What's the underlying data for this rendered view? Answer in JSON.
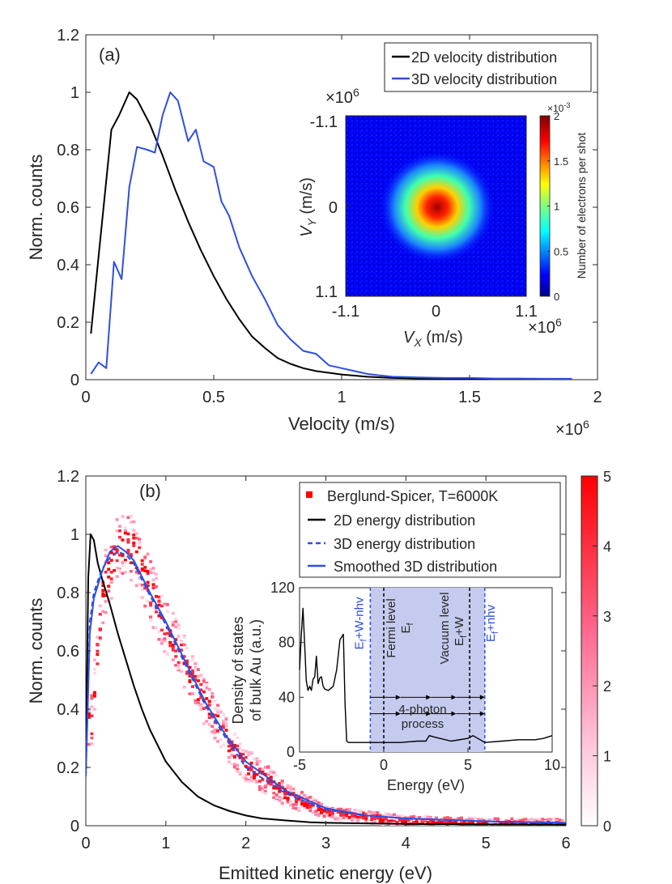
{
  "chart_data": [
    {
      "id": "a",
      "type": "line",
      "panel_label": "(a)",
      "xlabel": "Velocity (m/s)",
      "ylabel": "Norm. counts",
      "x_multiplier": "×10",
      "x_multiplier_exp": "6",
      "xlim": [
        0,
        2
      ],
      "ylim": [
        0,
        1.2
      ],
      "xticks": [
        0,
        0.5,
        1,
        1.5,
        2
      ],
      "xtick_labels": [
        "0",
        "0.5",
        "1",
        "1.5",
        "2"
      ],
      "yticks": [
        0,
        0.2,
        0.4,
        0.6,
        0.8,
        1,
        1.2
      ],
      "ytick_labels": [
        "0",
        "0.2",
        "0.4",
        "0.6",
        "0.8",
        "1",
        "1.2"
      ],
      "legend_position": "top-right",
      "series": [
        {
          "name": "2D velocity distribution",
          "color": "#000000",
          "x": [
            0.02,
            0.05,
            0.1,
            0.13,
            0.17,
            0.2,
            0.25,
            0.3,
            0.35,
            0.4,
            0.45,
            0.5,
            0.55,
            0.6,
            0.65,
            0.7,
            0.75,
            0.8,
            0.85,
            0.9,
            1.0,
            1.1,
            1.2,
            1.3,
            1.4,
            1.5,
            1.6,
            1.7,
            1.8,
            1.9
          ],
          "y": [
            0.16,
            0.43,
            0.87,
            0.92,
            1.0,
            0.975,
            0.89,
            0.78,
            0.66,
            0.55,
            0.45,
            0.36,
            0.28,
            0.21,
            0.15,
            0.11,
            0.075,
            0.055,
            0.04,
            0.03,
            0.018,
            0.01,
            0.006,
            0.004,
            0.003,
            0.002,
            0.002,
            0.002,
            0.002,
            0.002
          ]
        },
        {
          "name": "3D velocity distribution",
          "color": "#2e4fe0",
          "x": [
            0.02,
            0.05,
            0.08,
            0.11,
            0.14,
            0.17,
            0.2,
            0.24,
            0.27,
            0.3,
            0.33,
            0.36,
            0.4,
            0.43,
            0.46,
            0.5,
            0.53,
            0.56,
            0.6,
            0.65,
            0.7,
            0.75,
            0.8,
            0.85,
            0.9,
            0.95,
            1.0,
            1.05,
            1.1,
            1.15,
            1.2,
            1.3,
            1.4,
            1.5,
            1.6,
            1.7,
            1.8,
            1.9
          ],
          "y": [
            0.02,
            0.06,
            0.04,
            0.41,
            0.35,
            0.67,
            0.81,
            0.8,
            0.79,
            0.92,
            1.0,
            0.97,
            0.83,
            0.87,
            0.76,
            0.74,
            0.62,
            0.57,
            0.46,
            0.36,
            0.28,
            0.19,
            0.14,
            0.1,
            0.09,
            0.05,
            0.04,
            0.03,
            0.02,
            0.015,
            0.01,
            0.008,
            0.006,
            0.006,
            0.004,
            0.004,
            0.003,
            0.003
          ]
        }
      ],
      "inset": {
        "type": "heatmap",
        "xlabel_var": "V",
        "xlabel_sub": "X",
        "xlabel_unit": " (m/s)",
        "ylabel_var": "V",
        "ylabel_sub": "Y",
        "ylabel_unit": " (m/s)",
        "x_tick_labels": [
          "-1.1",
          "0",
          "1.1"
        ],
        "y_tick_labels": [
          "-1.1",
          "0",
          "1.1"
        ],
        "x_multiplier": "×10",
        "x_multiplier_exp": "6",
        "y_multiplier": "×10",
        "y_multiplier_exp": "6",
        "colorbar_label": "Number of electrons per shot",
        "colorbar_multiplier": "×10",
        "colorbar_multiplier_exp": "-3",
        "colorbar_ticks": [
          "0",
          "0.5",
          "1",
          "1.5",
          "2"
        ],
        "colorbar_range": [
          0,
          2
        ],
        "colormap": "jet"
      }
    },
    {
      "id": "b",
      "type": "line",
      "panel_label": "(b)",
      "xlabel": "Emitted kinetic energy (eV)",
      "ylabel": "Norm. counts",
      "xlim": [
        0,
        6
      ],
      "ylim": [
        0,
        1.2
      ],
      "xticks": [
        0,
        1,
        2,
        3,
        4,
        5,
        6
      ],
      "xtick_labels": [
        "0",
        "1",
        "2",
        "3",
        "4",
        "5",
        "6"
      ],
      "yticks": [
        0,
        0.2,
        0.4,
        0.6,
        0.8,
        1,
        1.2
      ],
      "ytick_labels": [
        "0",
        "0.2",
        "0.4",
        "0.6",
        "0.8",
        "1",
        "1.2"
      ],
      "legend_position": "top-right",
      "series": [
        {
          "name": "Berglund-Spicer, T=6000K",
          "style": "density-heatmap",
          "color": "#ff0000",
          "x": [
            0.05,
            0.2,
            0.4,
            0.6,
            0.8,
            1.0,
            1.25,
            1.5,
            1.75,
            2.0,
            2.5,
            3.0,
            4.0,
            5.0,
            6.0
          ],
          "y": [
            0.35,
            0.82,
            0.97,
            0.95,
            0.8,
            0.68,
            0.55,
            0.41,
            0.3,
            0.21,
            0.11,
            0.05,
            0.018,
            0.01,
            0.008
          ]
        },
        {
          "name": "2D energy distribution",
          "color": "#000000",
          "x": [
            0.0,
            0.03,
            0.06,
            0.1,
            0.15,
            0.2,
            0.3,
            0.4,
            0.5,
            0.6,
            0.7,
            0.8,
            1.0,
            1.2,
            1.4,
            1.6,
            1.8,
            2.0,
            2.2,
            2.5,
            2.8,
            3.0,
            3.5,
            4.0,
            5.0,
            6.0
          ],
          "y": [
            0.17,
            0.85,
            1.0,
            0.98,
            0.9,
            0.85,
            0.76,
            0.66,
            0.57,
            0.48,
            0.4,
            0.33,
            0.22,
            0.15,
            0.1,
            0.07,
            0.05,
            0.035,
            0.025,
            0.018,
            0.012,
            0.01,
            0.008,
            0.006,
            0.005,
            0.004
          ]
        },
        {
          "name": "3D energy distribution",
          "color": "#2e4fe0",
          "dash": "dashed",
          "x": [
            0.0,
            0.05,
            0.1,
            0.2,
            0.3,
            0.4,
            0.5,
            0.6,
            0.8,
            1.0,
            1.25,
            1.5,
            1.75,
            2.0,
            2.5,
            3.0,
            3.5,
            4.0,
            5.0,
            6.0
          ],
          "y": [
            0.17,
            0.7,
            0.8,
            0.88,
            0.92,
            0.94,
            0.93,
            0.9,
            0.79,
            0.69,
            0.55,
            0.41,
            0.3,
            0.2,
            0.11,
            0.055,
            0.035,
            0.025,
            0.015,
            0.01
          ]
        },
        {
          "name": "Smoothed 3D distribution",
          "color": "#2e4fe0",
          "x": [
            0.0,
            0.05,
            0.1,
            0.2,
            0.3,
            0.4,
            0.5,
            0.6,
            0.8,
            1.0,
            1.25,
            1.5,
            1.75,
            2.0,
            2.5,
            3.0,
            3.5,
            4.0,
            5.0,
            6.0
          ],
          "y": [
            0.17,
            0.66,
            0.78,
            0.87,
            0.94,
            0.96,
            0.94,
            0.91,
            0.8,
            0.7,
            0.56,
            0.42,
            0.31,
            0.22,
            0.12,
            0.06,
            0.035,
            0.025,
            0.015,
            0.01
          ]
        }
      ],
      "colorbar": {
        "ticks": [
          "0",
          "1",
          "2",
          "3",
          "4",
          "5"
        ],
        "range": [
          0,
          5
        ],
        "colors": [
          "#ffffff",
          "#ff0000"
        ]
      },
      "inset": {
        "type": "line",
        "xlabel": "Energy (eV)",
        "ylabel_line1": "Density of states",
        "ylabel_line2": "of bulk Au (a.u.)",
        "xlim": [
          -5,
          10
        ],
        "ylim": [
          0,
          120
        ],
        "xticks": [
          -5,
          0,
          5,
          10
        ],
        "xtick_labels": [
          "-5",
          "0",
          "5",
          "10"
        ],
        "yticks": [
          0,
          40,
          80,
          120
        ],
        "ytick_labels": [
          "0",
          "40",
          "80",
          "120"
        ],
        "shaded_region": [
          -0.8,
          6.0
        ],
        "shade_color": "#c5cbee",
        "vlines": [
          {
            "x": -0.8,
            "label": "E",
            "sub": "f",
            "suffix": "+W-nhv",
            "color": "#2e4fe0"
          },
          {
            "x": 0,
            "label": "Fermi level",
            "label2": "E",
            "label2_sub": "f",
            "color": "#000000"
          },
          {
            "x": 5.1,
            "label": "Vacuum level",
            "label2": "E",
            "label2_sub": "f",
            "label2_suffix": "+W",
            "color": "#000000"
          },
          {
            "x": 6.0,
            "label": "E",
            "sub": "f",
            "suffix": "+nhv",
            "color": "#2e4fe0"
          }
        ],
        "process_label_line1": "4-photon",
        "process_label_line2": "process",
        "dos_x": [
          -5.0,
          -4.9,
          -4.8,
          -4.7,
          -4.6,
          -4.5,
          -4.4,
          -4.3,
          -4.2,
          -4.1,
          -4.0,
          -3.9,
          -3.8,
          -3.7,
          -3.6,
          -3.5,
          -3.3,
          -3.0,
          -2.8,
          -2.6,
          -2.4,
          -2.3,
          -2.2,
          -2.1,
          -2.0,
          -1.5,
          -1.0,
          0.0,
          1.0,
          2.0,
          2.5,
          2.7,
          3.0,
          4.0,
          5.0,
          5.3,
          6.0,
          7.0,
          8.0,
          9.0,
          9.5,
          10.0
        ],
        "dos_y": [
          60,
          85,
          105,
          80,
          52,
          45,
          48,
          45,
          53,
          55,
          70,
          50,
          54,
          55,
          48,
          46,
          45,
          48,
          60,
          82,
          86,
          35,
          8,
          7,
          7,
          7,
          7,
          7,
          7,
          8,
          8,
          12,
          11,
          8,
          10,
          12,
          7,
          8,
          9,
          9,
          10,
          12
        ]
      }
    }
  ]
}
